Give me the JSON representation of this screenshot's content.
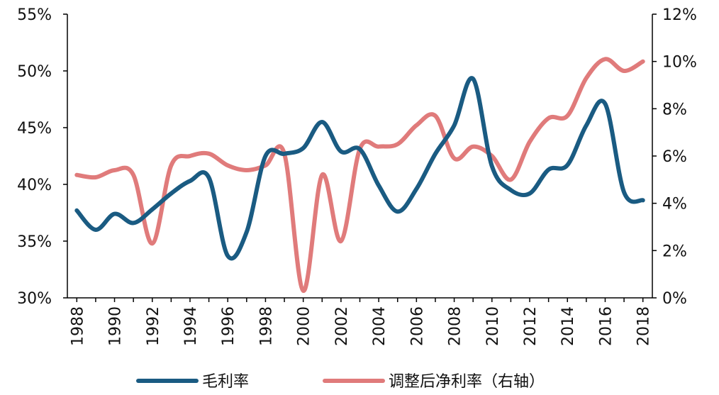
{
  "chart_data": {
    "type": "line",
    "x": [
      1988,
      1989,
      1990,
      1991,
      1992,
      1993,
      1994,
      1995,
      1996,
      1997,
      1998,
      1999,
      2000,
      2001,
      2002,
      2003,
      2004,
      2005,
      2006,
      2007,
      2008,
      2009,
      2010,
      2011,
      2012,
      2013,
      2014,
      2015,
      2016,
      2017,
      2018
    ],
    "x_tick_labels": [
      "1988",
      "1990",
      "1992",
      "1994",
      "1996",
      "1998",
      "2000",
      "2002",
      "2004",
      "2006",
      "2008",
      "2010",
      "2012",
      "2014",
      "2016",
      "2018"
    ],
    "y_left": {
      "min": 30,
      "max": 55,
      "ticks": [
        "30%",
        "35%",
        "40%",
        "45%",
        "50%",
        "55%"
      ]
    },
    "y_right": {
      "min": 0,
      "max": 12,
      "ticks": [
        "0%",
        "2%",
        "4%",
        "6%",
        "8%",
        "10%",
        "12%"
      ]
    },
    "series": [
      {
        "name": "毛利率",
        "axis": "left",
        "color": "#1a5b82",
        "values": [
          37.7,
          36.0,
          37.4,
          36.6,
          37.8,
          39.2,
          40.3,
          40.6,
          33.7,
          35.8,
          42.5,
          42.7,
          43.2,
          45.5,
          42.9,
          43.1,
          39.9,
          37.6,
          39.6,
          42.7,
          45.2,
          49.3,
          41.6,
          39.5,
          39.2,
          41.3,
          41.7,
          45.2,
          47.1,
          39.3,
          38.6
        ]
      },
      {
        "name": "调整后净利率（右轴）",
        "axis": "right",
        "color": "#e07b7b",
        "values": [
          5.2,
          5.1,
          5.4,
          5.2,
          2.3,
          5.6,
          6.0,
          6.1,
          5.6,
          5.4,
          5.6,
          6.1,
          0.3,
          5.2,
          2.4,
          6.3,
          6.4,
          6.5,
          7.3,
          7.7,
          5.9,
          6.4,
          6.0,
          5.0,
          6.6,
          7.6,
          7.7,
          9.3,
          10.1,
          9.6,
          10.0
        ]
      }
    ],
    "legend_position": "bottom-center",
    "grid": false
  }
}
